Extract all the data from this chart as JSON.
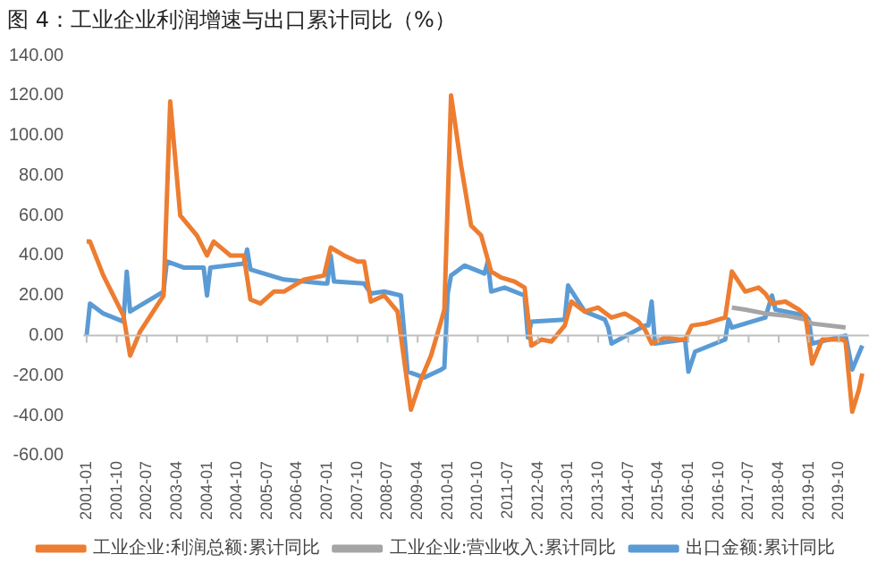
{
  "chart_data": {
    "type": "line",
    "title": "图 4：工业企业利润增速与出口累计同比（%）",
    "xlim": [
      "2000-12",
      "2020-07"
    ],
    "xticks": [
      "2001-01",
      "2001-10",
      "2002-07",
      "2003-04",
      "2004-01",
      "2004-10",
      "2005-07",
      "2006-04",
      "2007-01",
      "2007-10",
      "2008-07",
      "2009-04",
      "2010-01",
      "2010-10",
      "2011-07",
      "2012-04",
      "2013-01",
      "2013-10",
      "2014-07",
      "2015-04",
      "2016-01",
      "2016-10",
      "2017-07",
      "2018-04",
      "2019-01",
      "2019-10"
    ],
    "ylim": [
      -60,
      140
    ],
    "yticks": [
      {
        "value": -60,
        "label": "-60.00"
      },
      {
        "value": -40,
        "label": "-40.00"
      },
      {
        "value": -20,
        "label": "-20.00"
      },
      {
        "value": 0,
        "label": "0.00"
      },
      {
        "value": 20,
        "label": "20.00"
      },
      {
        "value": 40,
        "label": "40.00"
      },
      {
        "value": 60,
        "label": "60.00"
      },
      {
        "value": 80,
        "label": "80.00"
      },
      {
        "value": 100,
        "label": "100.00"
      },
      {
        "value": 120,
        "label": "120.00"
      },
      {
        "value": 140,
        "label": "140.00"
      }
    ],
    "legend": "bottom",
    "line_style": "solid",
    "series": [
      {
        "name": "工业企业:利润总额:累计同比",
        "color": "#ed7d31",
        "x": [
          "2001-01",
          "2001-02",
          "2001-06",
          "2001-12",
          "2002-02",
          "2002-05",
          "2002-12",
          "2003-02",
          "2003-05",
          "2003-10",
          "2004-01",
          "2004-03",
          "2004-08",
          "2004-12",
          "2005-02",
          "2005-05",
          "2005-09",
          "2005-12",
          "2006-02",
          "2006-06",
          "2006-12",
          "2007-02",
          "2007-06",
          "2007-10",
          "2007-12",
          "2008-02",
          "2008-06",
          "2008-10",
          "2009-02",
          "2009-05",
          "2009-08",
          "2009-11",
          "2009-12",
          "2010-02",
          "2010-05",
          "2010-08",
          "2010-11",
          "2011-02",
          "2011-05",
          "2011-09",
          "2011-12",
          "2012-02",
          "2012-05",
          "2012-08",
          "2012-11",
          "2012-12",
          "2013-02",
          "2013-06",
          "2013-10",
          "2014-02",
          "2014-06",
          "2014-10",
          "2014-12",
          "2015-02",
          "2015-06",
          "2015-10",
          "2015-12",
          "2016-02",
          "2016-06",
          "2016-10",
          "2016-12",
          "2017-02",
          "2017-06",
          "2017-10",
          "2017-12",
          "2018-02",
          "2018-06",
          "2018-10",
          "2018-12",
          "2019-02",
          "2019-05",
          "2019-08",
          "2019-11",
          "2019-12",
          "2020-02",
          "2020-04",
          "2020-05"
        ],
        "values": [
          47,
          47,
          30,
          10,
          -10,
          2,
          20,
          117,
          60,
          50,
          40,
          47,
          40,
          40,
          18,
          16,
          22,
          22,
          24,
          28,
          30,
          44,
          40,
          37,
          37,
          17,
          20,
          12,
          -37,
          -22,
          -10,
          7,
          13,
          120,
          85,
          55,
          50,
          32,
          29,
          27,
          24,
          -5,
          -2,
          -3,
          3,
          5,
          17,
          12,
          14,
          9,
          11,
          7,
          3,
          -4,
          -1,
          -2,
          -2,
          5,
          6,
          8,
          9,
          32,
          22,
          24,
          21,
          16,
          17,
          13,
          10,
          -14,
          -2,
          -2,
          -2,
          -3,
          -38,
          -27,
          -19
        ]
      },
      {
        "name": "工业企业:营业收入:累计同比",
        "color": "#a5a5a5",
        "x": [
          "2017-02",
          "2017-06",
          "2017-12",
          "2018-06",
          "2018-12",
          "2019-02",
          "2019-12"
        ],
        "values": [
          14,
          13,
          11,
          10,
          8,
          6,
          4
        ]
      },
      {
        "name": "出口金额:累计同比",
        "color": "#5b9bd5",
        "x": [
          "2001-01",
          "2001-02",
          "2001-06",
          "2001-12",
          "2002-01",
          "2002-02",
          "2002-12",
          "2003-01",
          "2003-06",
          "2003-12",
          "2004-01",
          "2004-02",
          "2004-12",
          "2005-01",
          "2005-02",
          "2005-12",
          "2006-06",
          "2006-12",
          "2007-01",
          "2007-02",
          "2007-03",
          "2007-12",
          "2008-02",
          "2008-06",
          "2008-11",
          "2009-01",
          "2009-06",
          "2009-11",
          "2009-12",
          "2010-01",
          "2010-02",
          "2010-06",
          "2010-12",
          "2011-01",
          "2011-02",
          "2011-06",
          "2011-12",
          "2012-01",
          "2012-02",
          "2012-12",
          "2013-01",
          "2013-06",
          "2013-12",
          "2014-01",
          "2014-02",
          "2014-12",
          "2015-01",
          "2015-02",
          "2015-03",
          "2015-12",
          "2016-01",
          "2016-03",
          "2016-06",
          "2016-12",
          "2017-01",
          "2017-02",
          "2017-10",
          "2017-12",
          "2018-02",
          "2018-03",
          "2018-12",
          "2019-01",
          "2019-02",
          "2019-12",
          "2020-02",
          "2020-05"
        ],
        "values": [
          0,
          16,
          11,
          7,
          32,
          12,
          22,
          37,
          34,
          34,
          20,
          34,
          36,
          43,
          33,
          28,
          27,
          26,
          26,
          40,
          27,
          26,
          21,
          22,
          20,
          -18,
          -21,
          -17,
          -16,
          21,
          30,
          35,
          31,
          37,
          22,
          24,
          20,
          -1,
          7,
          8,
          25,
          12,
          8,
          4,
          -4,
          5,
          5,
          17,
          -4,
          -2,
          -18,
          -8,
          -6,
          -2,
          8,
          4,
          8,
          9,
          20,
          13,
          10,
          8,
          -4,
          0,
          -17,
          -5
        ]
      }
    ]
  }
}
